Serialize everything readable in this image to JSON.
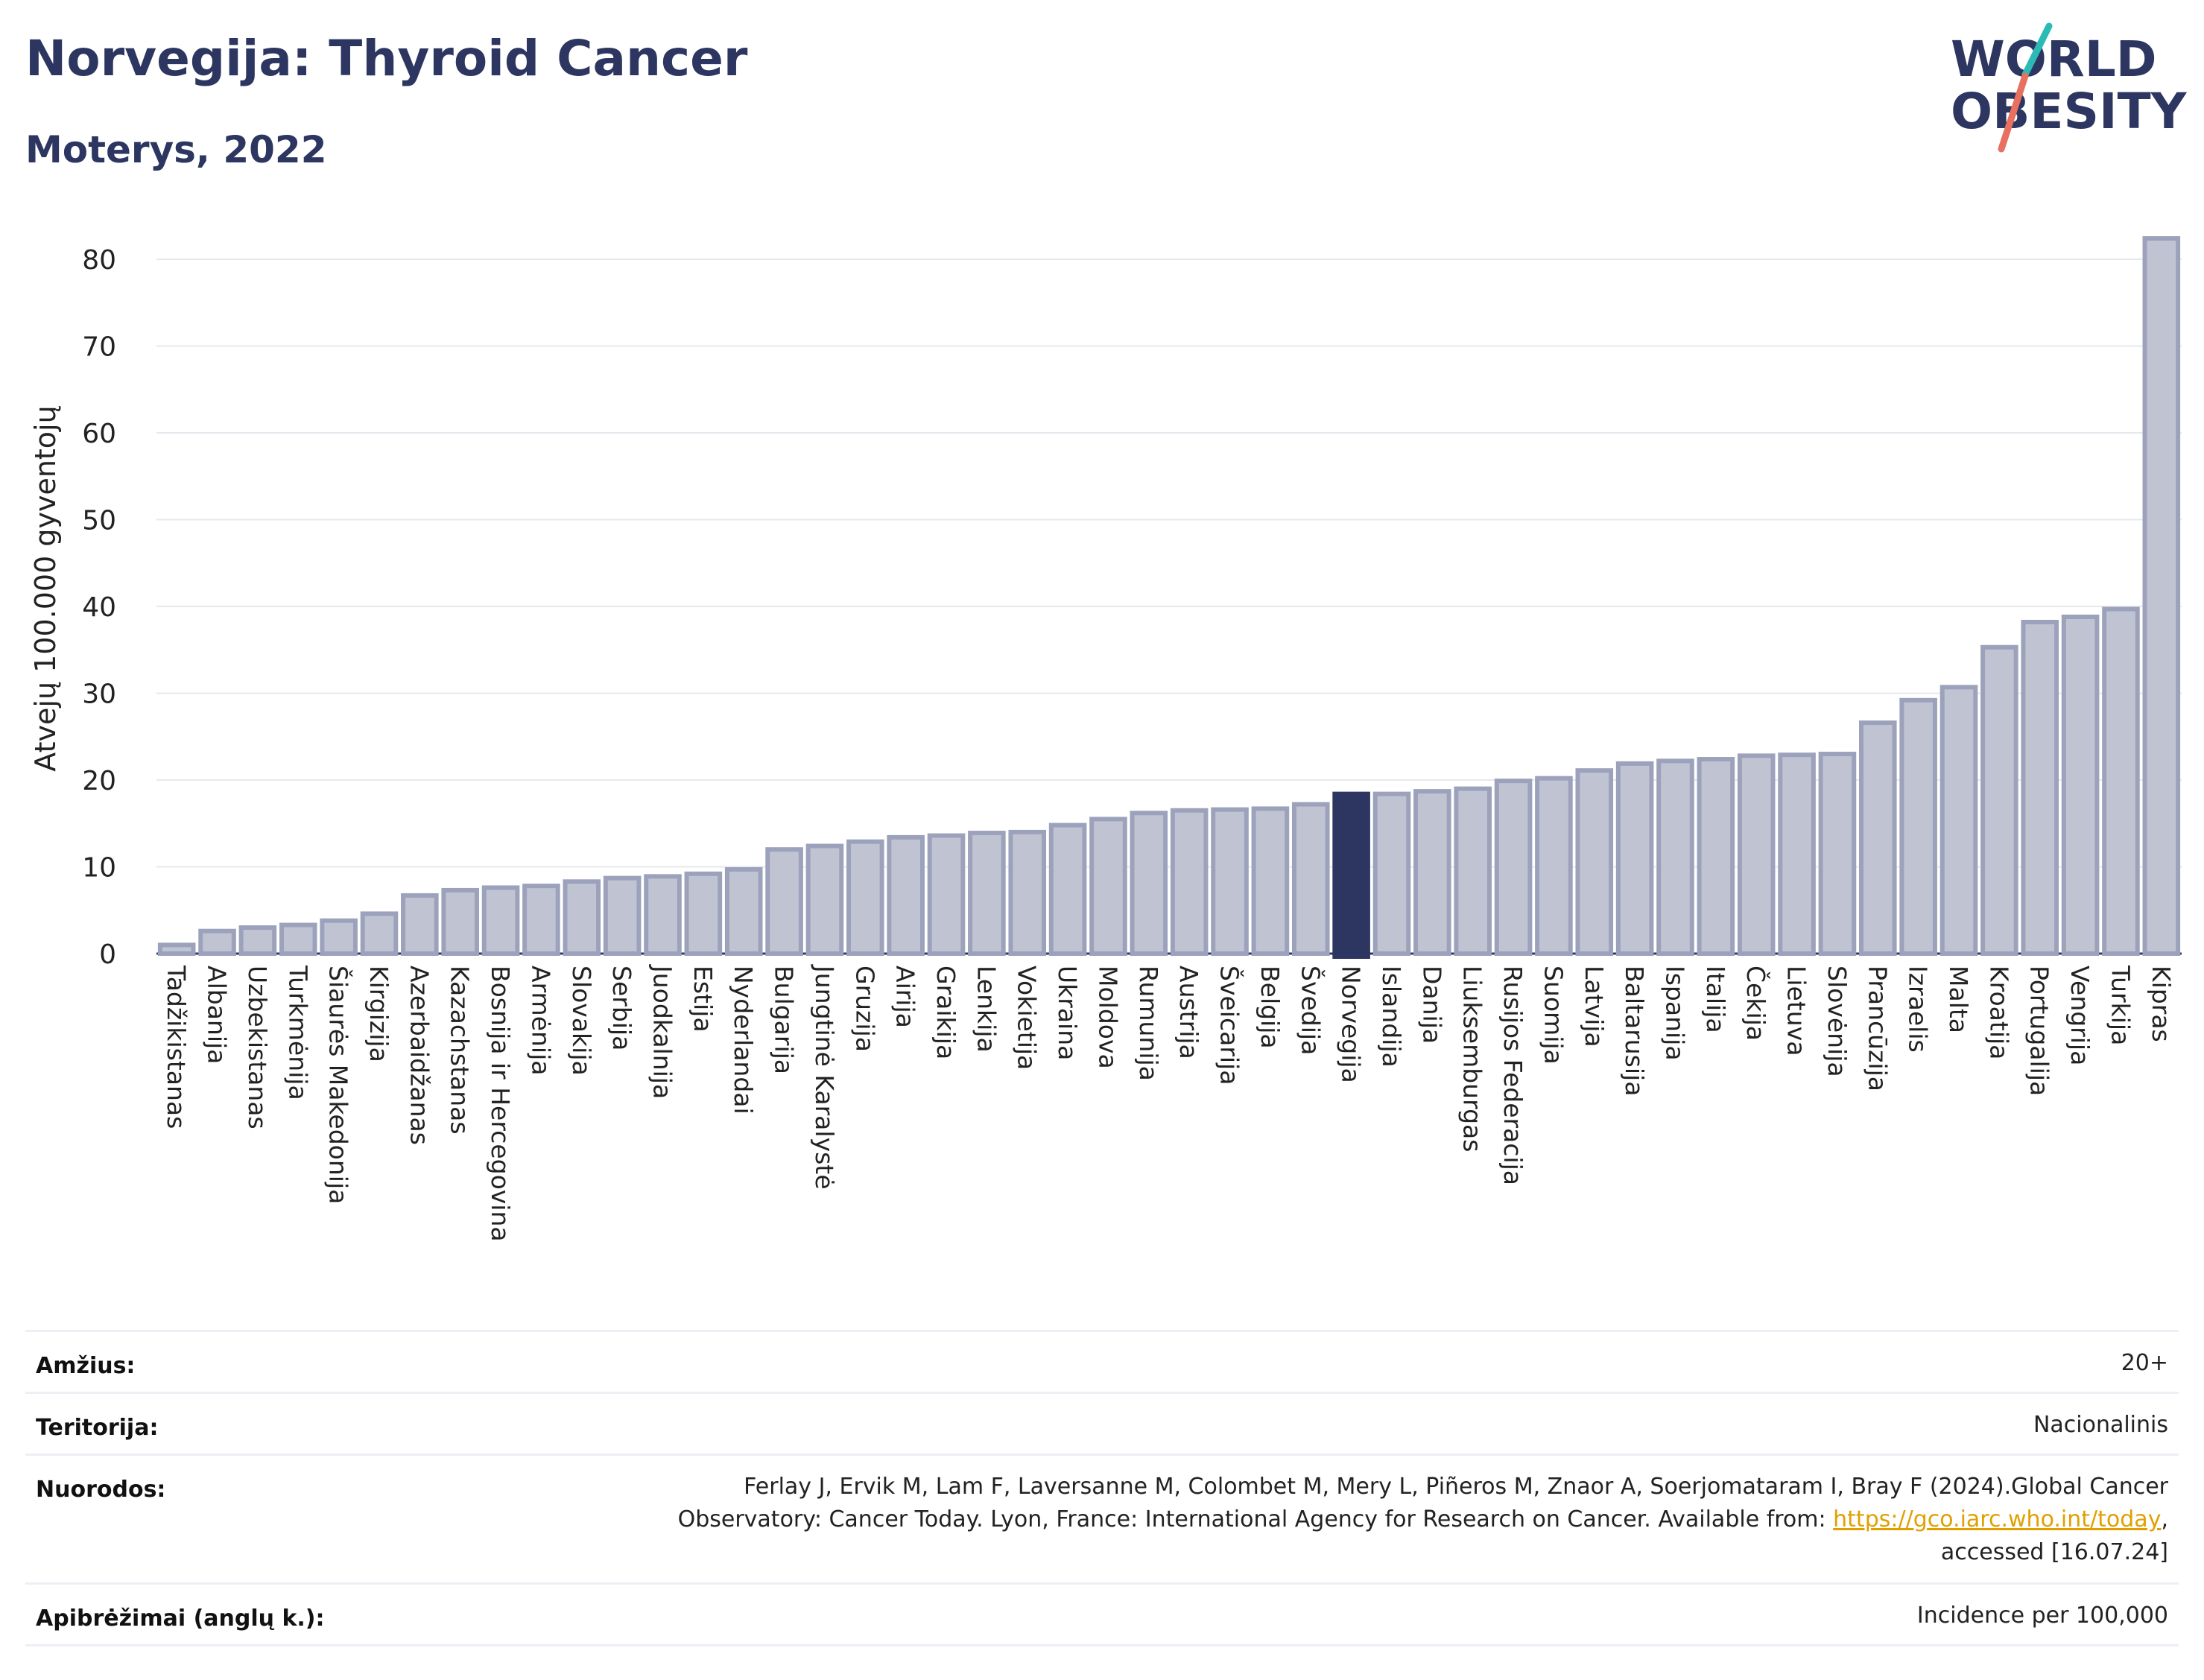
{
  "header": {
    "title": "Norvegija: Thyroid Cancer",
    "subtitle": "Moterys, 2022"
  },
  "logo": {
    "line1": "WORLD",
    "line2": "OBESITY"
  },
  "colors": {
    "bar": "#c0c4d2",
    "bar_stroke": "#9ca2bb",
    "highlight": "#2c3660",
    "title": "#2c3660",
    "link": "#e0a100",
    "logo_teal": "#2bbbb4",
    "logo_red": "#e8705f"
  },
  "chart_data": {
    "type": "bar",
    "ylabel": "Atvejų 100.000 gyventojų",
    "ylim": [
      0,
      85
    ],
    "yticks": [
      0,
      10,
      20,
      30,
      40,
      50,
      60,
      70,
      80
    ],
    "grid": true,
    "highlight": "Norvegija",
    "categories": [
      "Tadžikistanas",
      "Albanija",
      "Uzbekistanas",
      "Turkmėnija",
      "Šiaurės Makedonija",
      "Kirgizija",
      "Azerbaidžanas",
      "Kazachstanas",
      "Bosnija ir Hercegovina",
      "Armėnija",
      "Slovakija",
      "Serbija",
      "Juodkalnija",
      "Estija",
      "Nyderlandai",
      "Bulgarija",
      "Jungtinė Karalystė",
      "Gruzija",
      "Airija",
      "Graikija",
      "Lenkija",
      "Vokietija",
      "Ukraina",
      "Moldova",
      "Rumunija",
      "Austrija",
      "Šveicarija",
      "Belgija",
      "Švedija",
      "Norvegija",
      "Islandija",
      "Danija",
      "Liuksemburgas",
      "Rusijos Federacija",
      "Suomija",
      "Latvija",
      "Baltarusija",
      "Ispanija",
      "Italija",
      "Čekija",
      "Lietuva",
      "Slovėnija",
      "Prancūzija",
      "Izraelis",
      "Malta",
      "Kroatija",
      "Portugalija",
      "Vengrija",
      "Turkija",
      "Kipras"
    ],
    "values": [
      1.0,
      2.6,
      3.0,
      3.3,
      3.8,
      4.6,
      6.7,
      7.3,
      7.6,
      7.8,
      8.3,
      8.7,
      8.9,
      9.2,
      9.7,
      12.0,
      12.4,
      12.9,
      13.4,
      13.6,
      13.9,
      14.0,
      14.8,
      15.5,
      16.2,
      16.5,
      16.6,
      16.7,
      17.2,
      18.4,
      18.4,
      18.7,
      19.0,
      19.9,
      20.2,
      21.1,
      21.9,
      22.2,
      22.4,
      22.8,
      22.9,
      23.0,
      26.6,
      29.2,
      30.7,
      35.3,
      38.2,
      38.8,
      39.7,
      82.4
    ]
  },
  "footer": {
    "rows": [
      {
        "label": "Amžius:",
        "value": "20+"
      },
      {
        "label": "Teritorija:",
        "value": "Nacionalinis"
      },
      {
        "label": "Apibrėžimai (anglų k.):",
        "value": "Incidence per 100,000"
      }
    ],
    "references": {
      "label": "Nuorodos:",
      "line1": "Ferlay J, Ervik M, Lam F, Laversanne M, Colombet M, Mery L, Piñeros M, Znaor A, Soerjomataram I, Bray F (2024).Global Cancer",
      "line2_pre": "Observatory: Cancer Today. Lyon, France: International Agency for Research on Cancer. Available from: ",
      "link": "https://gco.iarc.who.int/today",
      "line2_post": ",",
      "line3": "accessed [16.07.24]"
    }
  }
}
